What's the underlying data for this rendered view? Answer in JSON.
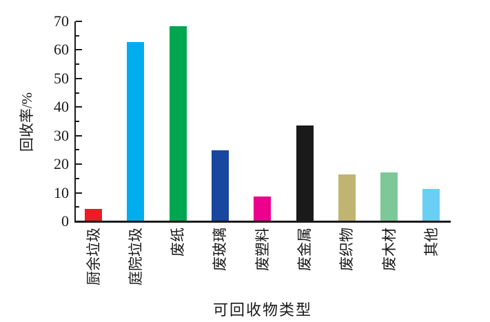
{
  "chart_data": {
    "type": "bar",
    "title": "",
    "xlabel": "可回收物类型",
    "ylabel": "回收率/%",
    "categories": [
      "厨余垃圾",
      "庭院垃圾",
      "废纸",
      "废玻璃",
      "废塑料",
      "废金属",
      "废织物",
      "废木材",
      "其他"
    ],
    "values": [
      4.2,
      62.4,
      68,
      24.6,
      8.5,
      33.4,
      16.1,
      17,
      11
    ],
    "bar_colors": [
      "#ec1c24",
      "#00aeef",
      "#00a650",
      "#17479e",
      "#ec008c",
      "#1a1a1a",
      "#c0b472",
      "#7ec898",
      "#69cff4"
    ],
    "ylim": [
      0,
      70
    ],
    "ytick_step": 10,
    "yminor_step": 5,
    "ytick_labels": [
      "0",
      "10",
      "20",
      "30",
      "40",
      "50",
      "60",
      "70"
    ],
    "grid": false,
    "legend": "none",
    "axis_color": "#1a1a1a"
  }
}
